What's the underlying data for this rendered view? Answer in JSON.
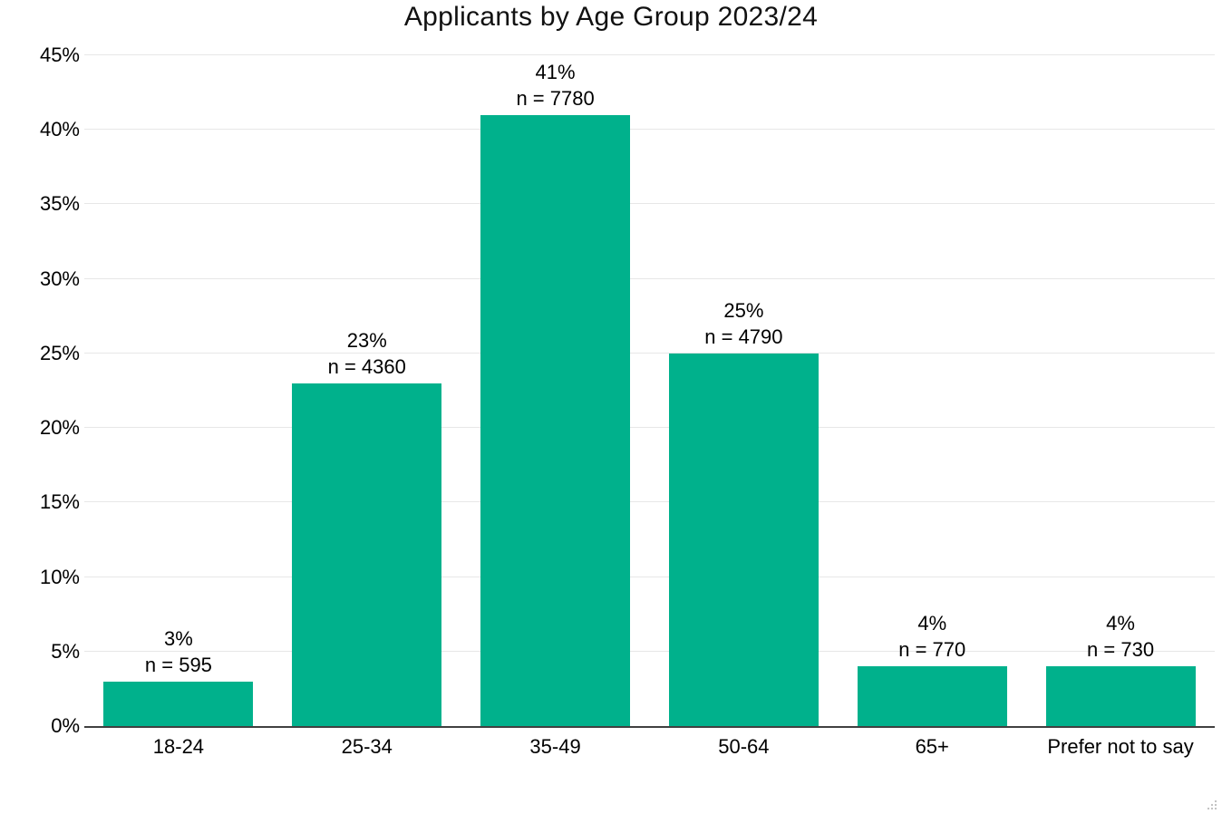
{
  "chart_data": {
    "type": "bar",
    "title": "Applicants by Age Group 2023/24",
    "xlabel": "",
    "ylabel": "",
    "categories": [
      "18-24",
      "25-34",
      "35-49",
      "50-64",
      "65+",
      "Prefer not to say"
    ],
    "values_percent": [
      3,
      23,
      41,
      25,
      4,
      4
    ],
    "counts": [
      595,
      4360,
      7780,
      4790,
      770,
      730
    ],
    "labels": [
      {
        "pct": "3%",
        "n": "n = 595"
      },
      {
        "pct": "23%",
        "n": "n = 4360"
      },
      {
        "pct": "41%",
        "n": "n = 7780"
      },
      {
        "pct": "25%",
        "n": "n = 4790"
      },
      {
        "pct": "4%",
        "n": "n = 770"
      },
      {
        "pct": "4%",
        "n": "n = 730"
      }
    ],
    "ylim": [
      0,
      45
    ],
    "yticks": [
      "0%",
      "5%",
      "10%",
      "15%",
      "20%",
      "25%",
      "30%",
      "35%",
      "40%",
      "45%"
    ],
    "grid": "horizontal",
    "legend": "none"
  },
  "colors": {
    "bar": "#00B18C",
    "gridline": "#E7E7E7",
    "axis_line": "#404040",
    "text": "#000000",
    "title_text": "#111111",
    "resize_handle": "#BDBDBD"
  },
  "icons": {
    "resize_grip": "resize-grip-icon"
  }
}
